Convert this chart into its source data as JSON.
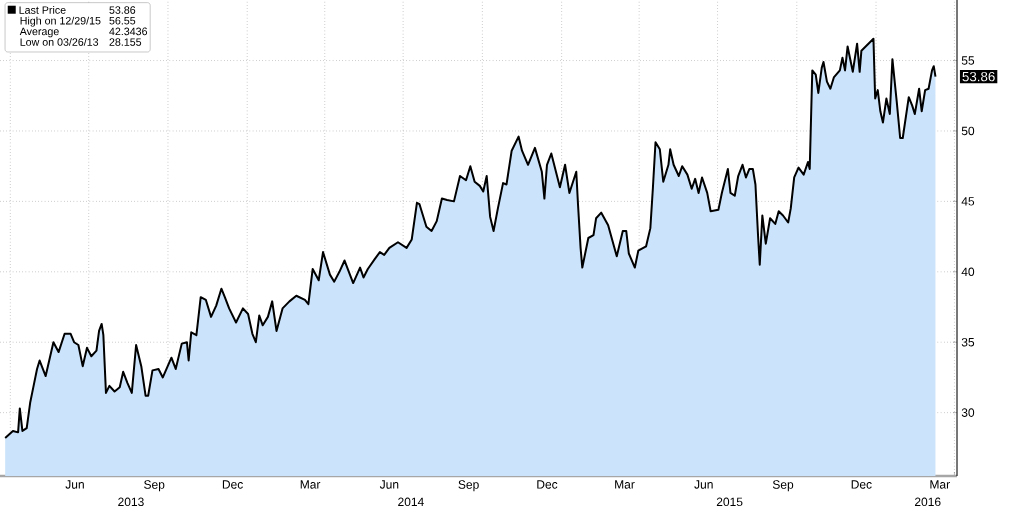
{
  "chart_data": {
    "type": "area",
    "x": [
      "2013-03-26",
      "2013-04-04",
      "2013-04-10",
      "2013-04-12",
      "2013-04-15",
      "2013-04-20",
      "2013-04-24",
      "2013-04-28",
      "2013-05-02",
      "2013-05-05",
      "2013-05-12",
      "2013-05-21",
      "2013-05-27",
      "2013-06-03",
      "2013-06-10",
      "2013-06-14",
      "2013-06-19",
      "2013-06-24",
      "2013-06-29",
      "2013-07-04",
      "2013-07-10",
      "2013-07-13",
      "2013-07-16",
      "2013-07-18",
      "2013-07-21",
      "2013-07-25",
      "2013-07-31",
      "2013-08-06",
      "2013-08-10",
      "2013-08-15",
      "2013-08-20",
      "2013-08-25",
      "2013-08-31",
      "2013-09-05",
      "2013-09-08",
      "2013-09-13",
      "2013-09-20",
      "2013-09-25",
      "2013-10-05",
      "2013-10-10",
      "2013-10-17",
      "2013-10-23",
      "2013-10-25",
      "2013-10-28",
      "2013-11-03",
      "2013-11-08",
      "2013-11-14",
      "2013-11-20",
      "2013-11-26",
      "2013-12-02",
      "2013-12-06",
      "2013-12-11",
      "2013-12-19",
      "2013-12-27",
      "2014-01-02",
      "2014-01-07",
      "2014-01-11",
      "2014-01-15",
      "2014-01-19",
      "2014-01-25",
      "2014-01-30",
      "2014-02-04",
      "2014-02-11",
      "2014-02-19",
      "2014-02-27",
      "2014-03-09",
      "2014-03-13",
      "2014-03-18",
      "2014-03-25",
      "2014-03-30",
      "2014-04-07",
      "2014-04-12",
      "2014-04-18",
      "2014-04-24",
      "2014-05-04",
      "2014-05-12",
      "2014-05-16",
      "2014-05-21",
      "2014-05-29",
      "2014-06-04",
      "2014-06-09",
      "2014-06-15",
      "2014-06-25",
      "2014-07-05",
      "2014-07-11",
      "2014-07-17",
      "2014-07-20",
      "2014-07-28",
      "2014-08-03",
      "2014-08-09",
      "2014-08-15",
      "2014-08-21",
      "2014-08-29",
      "2014-09-05",
      "2014-09-12",
      "2014-09-17",
      "2014-09-22",
      "2014-09-28",
      "2014-10-02",
      "2014-10-06",
      "2014-10-10",
      "2014-10-14",
      "2014-10-19",
      "2014-10-25",
      "2014-10-29",
      "2014-11-04",
      "2014-11-12",
      "2014-11-16",
      "2014-11-23",
      "2014-12-01",
      "2014-12-09",
      "2014-12-12",
      "2014-12-15",
      "2014-12-20",
      "2014-12-30",
      "2015-01-05",
      "2015-01-10",
      "2015-01-18",
      "2015-01-20",
      "2015-01-23",
      "2015-01-25",
      "2015-02-01",
      "2015-02-07",
      "2015-02-10",
      "2015-02-16",
      "2015-02-24",
      "2015-03-06",
      "2015-03-13",
      "2015-03-17",
      "2015-03-20",
      "2015-03-27",
      "2015-03-31",
      "2015-04-09",
      "2015-04-14",
      "2015-04-17",
      "2015-04-20",
      "2015-04-25",
      "2015-04-29",
      "2015-05-05",
      "2015-05-07",
      "2015-05-11",
      "2015-05-17",
      "2015-05-21",
      "2015-05-27",
      "2015-06-01",
      "2015-06-05",
      "2015-06-09",
      "2015-06-13",
      "2015-06-19",
      "2015-06-23",
      "2015-07-02",
      "2015-07-06",
      "2015-07-13",
      "2015-07-16",
      "2015-07-21",
      "2015-07-25",
      "2015-07-30",
      "2015-08-03",
      "2015-08-07",
      "2015-08-11",
      "2015-08-14",
      "2015-08-17",
      "2015-08-19",
      "2015-08-22",
      "2015-08-26",
      "2015-08-31",
      "2015-09-06",
      "2015-09-10",
      "2015-09-15",
      "2015-09-21",
      "2015-09-24",
      "2015-09-28",
      "2015-10-03",
      "2015-10-09",
      "2015-10-14",
      "2015-10-16",
      "2015-10-19",
      "2015-10-23",
      "2015-10-26",
      "2015-10-30",
      "2015-11-01",
      "2015-11-05",
      "2015-11-09",
      "2015-11-13",
      "2015-11-20",
      "2015-11-23",
      "2015-11-26",
      "2015-11-29",
      "2015-12-05",
      "2015-12-10",
      "2015-12-13",
      "2015-12-15",
      "2015-12-29",
      "2015-12-31",
      "2016-01-03",
      "2016-01-06",
      "2016-01-09",
      "2016-01-13",
      "2016-01-17",
      "2016-01-20",
      "2016-01-25",
      "2016-01-29",
      "2016-02-01",
      "2016-02-08",
      "2016-02-12",
      "2016-02-15",
      "2016-02-20",
      "2016-02-23",
      "2016-02-27",
      "2016-03-02",
      "2016-03-06",
      "2016-03-08",
      "2016-03-10"
    ],
    "series": [
      {
        "name": "Last Price",
        "color": "#cce4fb",
        "values": [
          28.2,
          28.7,
          28.6,
          30.3,
          28.7,
          28.9,
          30.7,
          31.9,
          33.1,
          33.7,
          32.6,
          35.0,
          34.3,
          35.6,
          35.6,
          35.0,
          34.8,
          33.3,
          34.6,
          34.0,
          34.4,
          35.8,
          36.3,
          35.5,
          31.4,
          31.9,
          31.5,
          31.8,
          32.9,
          32.1,
          31.4,
          34.8,
          33.3,
          31.2,
          31.2,
          33.0,
          33.1,
          32.5,
          33.9,
          33.1,
          34.9,
          35.0,
          33.7,
          35.7,
          35.5,
          38.2,
          38.0,
          36.8,
          37.6,
          38.8,
          38.2,
          37.4,
          36.4,
          37.4,
          37.0,
          35.6,
          35.0,
          36.9,
          36.2,
          36.8,
          37.9,
          35.8,
          37.4,
          37.9,
          38.3,
          38.0,
          37.7,
          40.2,
          39.4,
          41.4,
          39.8,
          39.3,
          40.0,
          40.8,
          39.2,
          40.3,
          39.6,
          40.2,
          40.9,
          41.4,
          41.2,
          41.7,
          42.1,
          41.7,
          42.3,
          44.9,
          44.8,
          43.2,
          42.9,
          43.6,
          45.2,
          45.1,
          45.0,
          46.8,
          46.5,
          47.5,
          46.4,
          46.1,
          45.7,
          46.8,
          43.9,
          42.9,
          44.5,
          46.3,
          46.2,
          48.6,
          49.6,
          48.6,
          47.6,
          48.8,
          47.1,
          45.2,
          47.6,
          48.4,
          46.0,
          47.6,
          45.6,
          47.1,
          44.8,
          41.7,
          40.3,
          42.4,
          42.6,
          43.8,
          44.2,
          43.3,
          41.1,
          42.9,
          42.9,
          41.3,
          40.3,
          41.5,
          41.8,
          43.1,
          46.0,
          49.2,
          48.7,
          46.4,
          47.6,
          48.7,
          47.6,
          46.8,
          47.5,
          46.9,
          45.9,
          46.6,
          45.6,
          46.7,
          45.6,
          44.3,
          44.4,
          45.6,
          47.3,
          45.6,
          45.4,
          46.8,
          47.6,
          46.7,
          47.3,
          47.3,
          46.2,
          42.6,
          40.5,
          44.0,
          42.0,
          43.8,
          43.4,
          44.3,
          44.0,
          43.5,
          44.5,
          46.7,
          47.4,
          46.9,
          47.8,
          47.3,
          54.3,
          54.0,
          52.7,
          54.5,
          54.9,
          53.5,
          53.0,
          53.8,
          54.3,
          55.2,
          54.3,
          56.0,
          54.2,
          56.2,
          54.2,
          55.7,
          56.55,
          52.3,
          52.9,
          51.4,
          50.6,
          52.3,
          51.2,
          55.1,
          52.1,
          49.5,
          49.5,
          52.4,
          51.8,
          51.2,
          53.0,
          51.4,
          52.9,
          53.0,
          54.3,
          54.6,
          53.86
        ]
      }
    ],
    "xlim": [
      "2013-03-20",
      "2016-04-04"
    ],
    "xticks": [
      {
        "value": "2013-04-01",
        "label": null
      },
      {
        "value": "2013-06-15",
        "label": "Jun"
      },
      {
        "value": "2013-07-01",
        "label": null
      },
      {
        "value": "2013-09-15",
        "label": "Sep"
      },
      {
        "value": "2013-10-01",
        "label": null
      },
      {
        "value": "2013-12-15",
        "label": "Dec"
      },
      {
        "value": "2014-01-01",
        "label": null
      },
      {
        "value": "2014-03-15",
        "label": "Mar"
      },
      {
        "value": "2014-04-01",
        "label": null
      },
      {
        "value": "2014-06-15",
        "label": "Jun"
      },
      {
        "value": "2014-07-01",
        "label": null
      },
      {
        "value": "2014-09-15",
        "label": "Sep"
      },
      {
        "value": "2014-10-01",
        "label": null
      },
      {
        "value": "2014-12-15",
        "label": "Dec"
      },
      {
        "value": "2015-01-01",
        "label": null
      },
      {
        "value": "2015-03-15",
        "label": "Mar"
      },
      {
        "value": "2015-04-01",
        "label": null
      },
      {
        "value": "2015-06-15",
        "label": "Jun"
      },
      {
        "value": "2015-07-01",
        "label": null
      },
      {
        "value": "2015-09-15",
        "label": "Sep"
      },
      {
        "value": "2015-10-01",
        "label": null
      },
      {
        "value": "2015-12-15",
        "label": "Dec"
      },
      {
        "value": "2016-01-01",
        "label": null
      },
      {
        "value": "2016-03-15",
        "label": "Mar"
      },
      {
        "value": "2016-04-01",
        "label": null
      }
    ],
    "ylim": [
      25.5,
      59.3
    ],
    "yticks": [
      30,
      35,
      40,
      45,
      50,
      55
    ],
    "grid": true,
    "legend": "top left",
    "x2lim": [
      "2013-03-20",
      "2016-04-04"
    ],
    "x2ticks": [
      {
        "value": "2013-08-19",
        "label": "2013"
      },
      {
        "value": "2014-07-10",
        "label": "2014"
      },
      {
        "value": "2015-07-15",
        "label": "2015"
      },
      {
        "value": "2016-03-01",
        "label": "2016"
      }
    ],
    "annotations": [
      {
        "text": "53.86",
        "y": 53.86
      },
      "53.86",
      "High on 12/29/15",
      "56.55",
      "Average",
      "42.3436",
      "Low on 03/26/13",
      "28.155"
    ]
  }
}
